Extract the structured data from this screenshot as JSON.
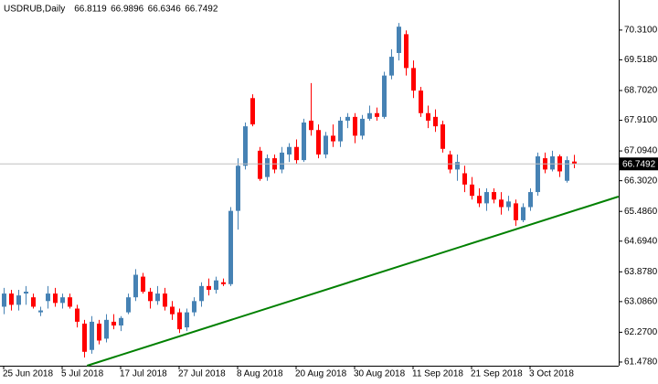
{
  "chart_data": {
    "type": "candlestick",
    "title": "USDRUB,Daily",
    "categories": [
      "25 Jun 2018",
      null,
      null,
      null,
      null,
      null,
      null,
      null,
      "5 Jul 2018",
      null,
      null,
      null,
      null,
      null,
      null,
      null,
      "17 Jul 2018",
      null,
      null,
      null,
      null,
      null,
      null,
      null,
      "27 Jul 2018",
      null,
      null,
      null,
      null,
      null,
      null,
      null,
      "8 Aug 2018",
      null,
      null,
      null,
      null,
      null,
      null,
      null,
      "20 Aug 2018",
      null,
      null,
      null,
      null,
      null,
      null,
      null,
      "30 Aug 2018",
      null,
      null,
      null,
      null,
      null,
      null,
      null,
      "11 Sep 2018",
      null,
      null,
      null,
      null,
      null,
      null,
      null,
      "21 Sep 2018",
      null,
      null,
      null,
      null,
      null,
      null,
      null,
      "3 Oct 2018",
      null,
      null,
      null,
      null,
      null,
      null
    ],
    "open": [
      62.95,
      63.3,
      63.0,
      63.3,
      63.2,
      62.8,
      63.1,
      63.3,
      63.05,
      63.2,
      62.9,
      62.5,
      61.8,
      62.5,
      62.1,
      62.55,
      62.45,
      62.8,
      63.2,
      63.75,
      63.35,
      63.1,
      63.3,
      62.95,
      62.8,
      62.4,
      62.8,
      63.1,
      63.5,
      63.4,
      63.6,
      63.55,
      65.5,
      66.7,
      68.5,
      67.1,
      66.4,
      66.9,
      66.6,
      67.0,
      67.2,
      66.85,
      67.9,
      67.65,
      67.0,
      67.5,
      67.35,
      67.9,
      68.0,
      67.5,
      67.95,
      68.1,
      68.0,
      69.1,
      69.7,
      70.2,
      69.3,
      68.7,
      68.1,
      68.0,
      67.8,
      67.0,
      66.6,
      66.5,
      66.2,
      65.9,
      65.7,
      66.0,
      65.8,
      65.6,
      65.7,
      65.25,
      65.6,
      66.0,
      66.9,
      66.6,
      66.95,
      66.3,
      66.8119
    ],
    "high": [
      63.45,
      63.4,
      63.4,
      63.5,
      63.3,
      62.95,
      63.5,
      63.45,
      63.3,
      63.3,
      63.0,
      62.6,
      62.7,
      62.6,
      62.75,
      62.75,
      62.7,
      63.3,
      63.95,
      63.85,
      63.45,
      63.5,
      63.45,
      63.1,
      62.9,
      62.9,
      63.2,
      63.6,
      63.7,
      63.75,
      63.7,
      65.6,
      66.9,
      67.85,
      68.6,
      67.2,
      67.0,
      67.0,
      67.2,
      67.3,
      67.4,
      67.95,
      68.9,
      67.8,
      67.6,
      67.8,
      68.0,
      68.1,
      68.1,
      68.05,
      68.3,
      68.25,
      69.2,
      69.8,
      70.5,
      70.3,
      69.5,
      68.8,
      68.3,
      68.2,
      67.9,
      67.1,
      67.0,
      66.7,
      66.4,
      66.1,
      66.1,
      66.1,
      66.0,
      65.9,
      65.8,
      65.7,
      66.1,
      67.05,
      67.05,
      67.1,
      67.0,
      66.95,
      66.9896
    ],
    "low": [
      62.75,
      62.85,
      62.85,
      63.0,
      62.9,
      62.7,
      62.9,
      62.95,
      62.9,
      62.9,
      62.4,
      61.6,
      61.7,
      61.95,
      62.0,
      62.35,
      62.3,
      62.75,
      63.1,
      63.3,
      62.9,
      63.0,
      62.85,
      62.6,
      62.25,
      62.3,
      62.7,
      62.95,
      63.25,
      63.3,
      63.5,
      63.5,
      65.0,
      66.6,
      67.75,
      66.3,
      66.3,
      66.5,
      66.5,
      66.8,
      66.75,
      66.8,
      67.5,
      66.9,
      66.9,
      67.2,
      67.2,
      67.7,
      67.3,
      67.4,
      67.9,
      67.9,
      67.95,
      69.0,
      69.5,
      69.1,
      68.5,
      68.0,
      67.7,
      67.6,
      67.05,
      66.5,
      66.3,
      66.0,
      65.8,
      65.6,
      65.5,
      65.7,
      65.4,
      65.5,
      65.1,
      65.2,
      65.5,
      65.9,
      66.5,
      66.55,
      66.4,
      66.25,
      66.6346
    ],
    "close": [
      63.3,
      63.0,
      63.25,
      63.35,
      62.95,
      62.85,
      63.3,
      63.05,
      63.2,
      62.95,
      62.55,
      61.75,
      62.55,
      62.05,
      62.6,
      62.45,
      62.65,
      63.2,
      63.8,
      63.35,
      63.1,
      63.3,
      62.95,
      62.75,
      62.35,
      62.8,
      63.1,
      63.5,
      63.4,
      63.65,
      63.55,
      65.5,
      66.7,
      67.75,
      67.8,
      66.35,
      66.9,
      66.6,
      67.05,
      67.2,
      66.85,
      67.85,
      67.65,
      67.0,
      67.5,
      67.35,
      67.9,
      68.0,
      67.5,
      67.95,
      68.1,
      68.0,
      69.1,
      69.6,
      70.4,
      69.3,
      68.7,
      68.1,
      67.9,
      67.75,
      67.15,
      66.6,
      66.8,
      66.2,
      65.9,
      65.7,
      66.0,
      65.8,
      65.6,
      65.75,
      65.25,
      65.6,
      66.0,
      66.95,
      66.6,
      66.95,
      66.55,
      66.85,
      66.7492
    ],
    "up_color": "#4682b4",
    "down_color": "#ff0000",
    "ylim": [
      61.38,
      71.11
    ],
    "yticks": [
      {
        "value": 61.478,
        "label": "61.4780"
      },
      {
        "value": 62.27,
        "label": "62.2700"
      },
      {
        "value": 63.086,
        "label": "63.0860"
      },
      {
        "value": 63.878,
        "label": "63.8780"
      },
      {
        "value": 64.694,
        "label": "64.6940"
      },
      {
        "value": 65.486,
        "label": "65.4860"
      },
      {
        "value": 66.302,
        "label": "66.3020"
      },
      {
        "value": 67.094,
        "label": "67.0940"
      },
      {
        "value": 67.91,
        "label": "67.9100"
      },
      {
        "value": 68.702,
        "label": "68.7020"
      },
      {
        "value": 69.518,
        "label": "69.5180"
      },
      {
        "value": 70.31,
        "label": "70.3100"
      }
    ],
    "trendline": {
      "x": [
        11.4,
        84.1
      ],
      "y": [
        61.38,
        65.88
      ],
      "color": "#008000"
    }
  }
}
